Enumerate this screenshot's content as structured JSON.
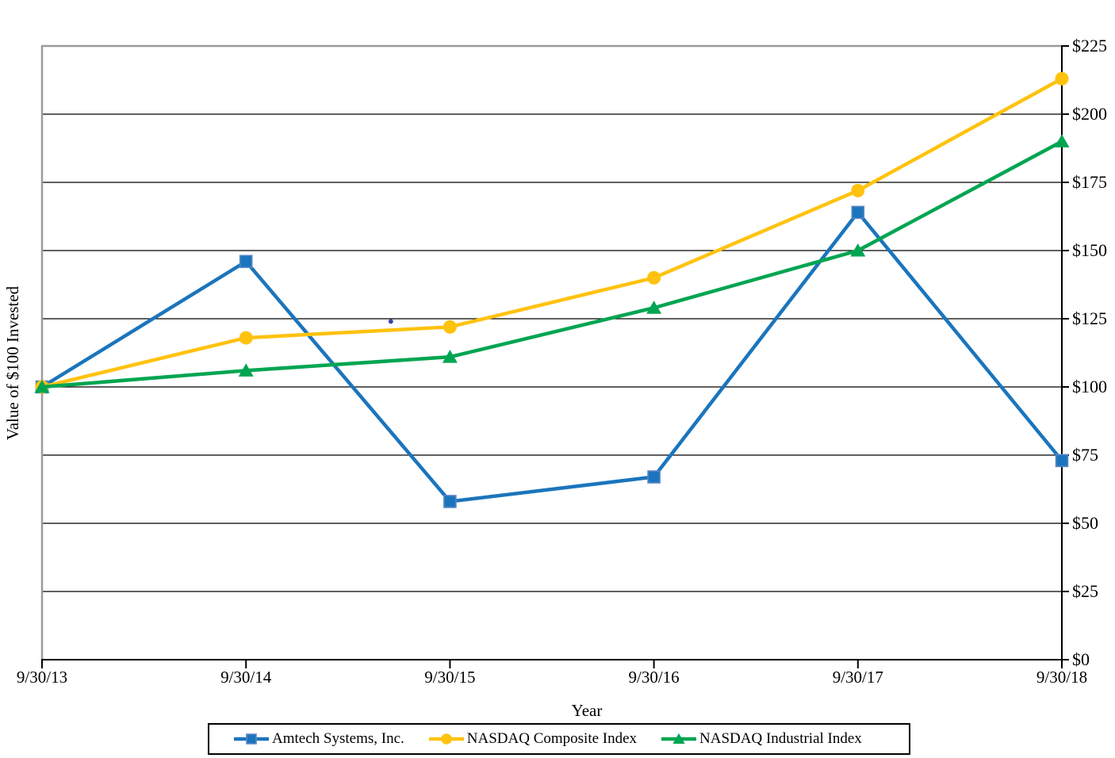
{
  "chart_data": {
    "type": "line",
    "title": "",
    "xlabel": "Year",
    "ylabel": "Value of $100 Invested",
    "x_categories": [
      "9/30/13",
      "9/30/14",
      "9/30/15",
      "9/30/16",
      "9/30/17",
      "9/30/18"
    ],
    "y_ticks": [
      0,
      25,
      50,
      75,
      100,
      125,
      150,
      175,
      200,
      225
    ],
    "y_tick_labels": [
      "$0",
      "$25",
      "$50",
      "$75",
      "$100",
      "$125",
      "$150",
      "$175",
      "$200",
      "$225"
    ],
    "ylim": [
      0,
      225
    ],
    "grid": "horizontal",
    "legend_position": "bottom",
    "series": [
      {
        "name": "Amtech Systems, Inc.",
        "color": "#1B75BC",
        "marker": "square",
        "marker_stroke": "#5A87C5",
        "values": [
          100,
          146,
          58,
          67,
          164,
          73
        ]
      },
      {
        "name": "NASDAQ Composite Index",
        "color": "#FFC20E",
        "marker": "circle",
        "marker_stroke": "#FFC20E",
        "values": [
          100,
          118,
          122,
          140,
          172,
          213
        ]
      },
      {
        "name": "NASDAQ Industrial Index",
        "color": "#00A551",
        "marker": "triangle",
        "marker_stroke": "#00A551",
        "values": [
          100,
          106,
          111,
          129,
          150,
          190
        ]
      }
    ],
    "artifact_dot": {
      "x_index_fraction": 1.71,
      "value": 124,
      "color": "#3C45A5"
    }
  },
  "colors": {
    "grid": "#000000",
    "border_gray": "#9B9B9B",
    "axis_black": "#000000",
    "text": "#000000",
    "background": "#ffffff"
  }
}
